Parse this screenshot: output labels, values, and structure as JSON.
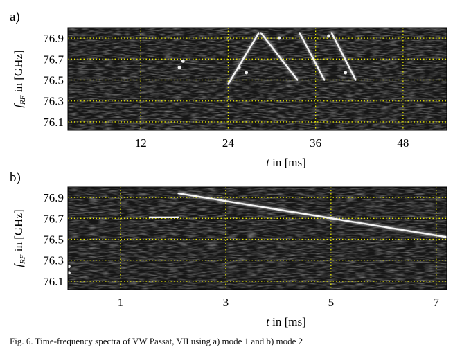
{
  "caption": "Fig. 6.   Time-frequency spectra of VW Passat, VII using a) mode 1 and b) mode 2",
  "chart_data": [
    {
      "type": "heatmap",
      "panel_label": "a)",
      "xlabel_var": "t",
      "xlabel_rest": " in [ms]",
      "ylabel_var": "f",
      "ylabel_sub": "RF",
      "ylabel_rest": " in [GHz]",
      "xlim": [
        2,
        54
      ],
      "ylim": [
        76.02,
        77.0
      ],
      "xticks": [
        12,
        24,
        36,
        48
      ],
      "yticks": [
        76.1,
        76.3,
        76.5,
        76.7,
        76.9
      ],
      "grid": true,
      "segments": [
        {
          "x": [
            24,
            28.2
          ],
          "y": [
            76.46,
            76.95
          ]
        },
        {
          "x": [
            28.5,
            33.5
          ],
          "y": [
            76.95,
            76.5
          ]
        },
        {
          "x": [
            33.8,
            37.2
          ],
          "y": [
            76.95,
            76.5
          ]
        },
        {
          "x": [
            38.2,
            41.5
          ],
          "y": [
            76.95,
            76.5
          ]
        }
      ],
      "points": [
        {
          "x": 17.3,
          "y": 76.62
        },
        {
          "x": 17.8,
          "y": 76.68
        },
        {
          "x": 25.5,
          "y": 76.62
        },
        {
          "x": 26.5,
          "y": 76.57
        },
        {
          "x": 40.1,
          "y": 76.57
        },
        {
          "x": 31,
          "y": 76.9
        },
        {
          "x": 37.8,
          "y": 76.92
        }
      ]
    },
    {
      "type": "heatmap",
      "panel_label": "b)",
      "xlabel_var": "t",
      "xlabel_rest": " in [ms]",
      "ylabel_var": "f",
      "ylabel_sub": "RF",
      "ylabel_rest": " in [GHz]",
      "xlim": [
        0,
        7.2
      ],
      "ylim": [
        76.02,
        77.0
      ],
      "xticks": [
        1,
        3,
        5,
        7
      ],
      "yticks": [
        76.1,
        76.3,
        76.5,
        76.7,
        76.9
      ],
      "grid": true,
      "segments": [
        {
          "x": [
            2.1,
            7.2
          ],
          "y": [
            76.94,
            76.52
          ]
        },
        {
          "x": [
            1.55,
            2.1
          ],
          "y": [
            76.71,
            76.71
          ]
        }
      ],
      "points": [
        {
          "x": 0.02,
          "y": 76.18
        },
        {
          "x": 0.02,
          "y": 76.24
        }
      ]
    }
  ]
}
